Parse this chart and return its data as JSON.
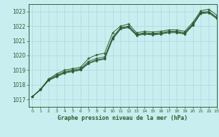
{
  "title": "Graphe pression niveau de la mer (hPa)",
  "bg_color": "#c8eef0",
  "grid_color": "#b0dce0",
  "line_color": "#2d5a2d",
  "xlim": [
    -0.5,
    23
  ],
  "ylim": [
    1016.5,
    1023.5
  ],
  "yticks": [
    1017,
    1018,
    1019,
    1020,
    1021,
    1022,
    1023
  ],
  "xticks": [
    0,
    1,
    2,
    3,
    4,
    5,
    6,
    7,
    8,
    9,
    10,
    11,
    12,
    13,
    14,
    15,
    16,
    17,
    18,
    19,
    20,
    21,
    22,
    23
  ],
  "series": [
    [
      1017.2,
      1017.7,
      1018.4,
      1018.75,
      1019.0,
      1019.1,
      1019.2,
      1019.8,
      1020.05,
      1020.15,
      1021.55,
      1022.0,
      1022.15,
      1021.55,
      1021.65,
      1021.6,
      1021.65,
      1021.75,
      1021.75,
      1021.65,
      1022.25,
      1023.05,
      1023.15,
      1022.75
    ],
    [
      1017.2,
      1017.7,
      1018.35,
      1018.65,
      1018.9,
      1019.0,
      1019.1,
      1019.6,
      1019.8,
      1019.9,
      1021.25,
      1021.9,
      1022.0,
      1021.45,
      1021.55,
      1021.5,
      1021.55,
      1021.65,
      1021.65,
      1021.55,
      1022.15,
      1022.95,
      1023.0,
      1022.6
    ],
    [
      1017.2,
      1017.7,
      1018.3,
      1018.6,
      1018.85,
      1018.95,
      1019.05,
      1019.5,
      1019.7,
      1019.8,
      1021.15,
      1021.85,
      1021.95,
      1021.4,
      1021.5,
      1021.45,
      1021.5,
      1021.6,
      1021.6,
      1021.5,
      1022.1,
      1022.9,
      1022.95,
      1022.55
    ],
    [
      1017.2,
      1017.65,
      1018.3,
      1018.55,
      1018.8,
      1018.9,
      1019.0,
      1019.45,
      1019.65,
      1019.75,
      1021.1,
      1021.8,
      1021.9,
      1021.35,
      1021.45,
      1021.4,
      1021.45,
      1021.55,
      1021.55,
      1021.45,
      1022.05,
      1022.85,
      1022.9,
      1022.5
    ]
  ]
}
